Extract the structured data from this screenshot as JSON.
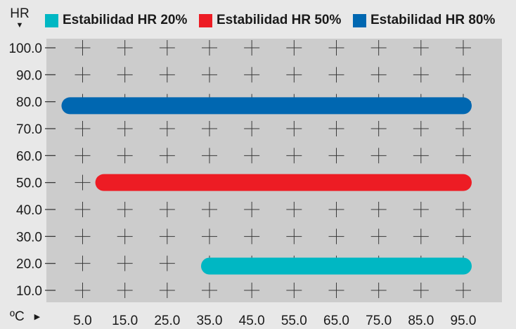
{
  "chart_data": {
    "type": "range-bar",
    "ylabel": "HR",
    "xlabel": "ºC",
    "xlim": [
      0,
      100
    ],
    "ylim": [
      5,
      102
    ],
    "x_ticks": [
      "5.0",
      "15.0",
      "25.0",
      "35.0",
      "45.0",
      "55.0",
      "65.0",
      "75.0",
      "85.0",
      "95.0"
    ],
    "x_tick_values": [
      5,
      15,
      25,
      35,
      45,
      55,
      65,
      75,
      85,
      95
    ],
    "y_ticks": [
      "10.0",
      "20.0",
      "30.0",
      "40.0",
      "50.0",
      "60.0",
      "70.0",
      "80.0",
      "90.0",
      "100.0"
    ],
    "y_tick_values": [
      10,
      20,
      30,
      40,
      50,
      60,
      70,
      80,
      90,
      100
    ],
    "grid": "cross-markers",
    "legend_position": "top",
    "series": [
      {
        "name": "Estabilidad HR 20%",
        "y": 19,
        "x_start": 35,
        "x_end": 95,
        "color": "#00b7c3"
      },
      {
        "name": "Estabilidad HR 50%",
        "y": 50,
        "x_start": 10,
        "x_end": 95,
        "color": "#ed1c24"
      },
      {
        "name": "Estabilidad HR 80%",
        "y": 78.5,
        "x_start": 2,
        "x_end": 95,
        "color": "#0067b1"
      }
    ]
  },
  "colors": {
    "plot_background": "#cccccc",
    "page_background": "#e8e8e8",
    "grid_marker": "#3a3a3a"
  }
}
